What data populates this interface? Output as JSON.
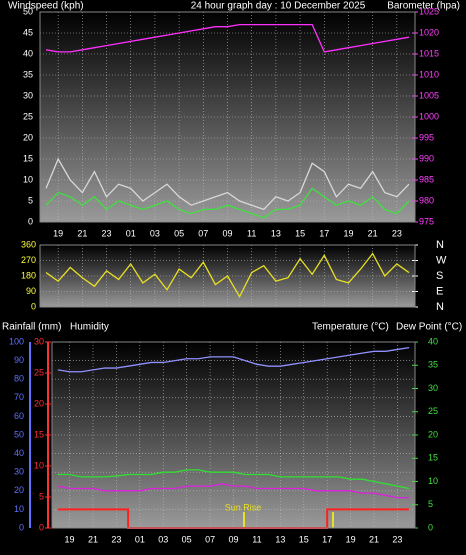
{
  "chart_data": [
    {
      "type": "line",
      "title": "24 hour graph day : 10 December 2025",
      "ylabel": "Windspeed (kph)",
      "y2label": "Barometer (hpa)",
      "categories": [
        null,
        "19",
        null,
        "21",
        null,
        "23",
        null,
        "01",
        null,
        "03",
        null,
        "05",
        null,
        "07",
        null,
        "09",
        null,
        "11",
        null,
        "13",
        null,
        "15",
        null,
        "17",
        null,
        "19",
        null,
        "21",
        null,
        "23",
        null
      ],
      "ylim": [
        0,
        50
      ],
      "yticks": [
        0,
        5,
        10,
        15,
        20,
        25,
        30,
        35,
        40,
        45,
        50
      ],
      "ytick_color": "#ffffff",
      "y2lim": [
        975,
        1025
      ],
      "y2ticks": [
        975,
        980,
        985,
        990,
        995,
        1000,
        1005,
        1010,
        1015,
        1020,
        1025
      ],
      "y2tick_color": "#ff40ff",
      "grid": true,
      "series": [
        {
          "color": "#d8d8d8",
          "values": [
            8,
            15,
            10,
            7,
            12,
            6,
            9,
            8,
            5,
            7,
            9,
            6,
            4,
            5,
            6,
            7,
            5,
            4,
            3,
            6,
            5,
            7,
            14,
            12,
            6,
            9,
            8,
            12,
            7,
            6,
            9
          ]
        },
        {
          "color": "#40e040",
          "values": [
            4,
            7,
            6,
            4,
            6,
            3,
            5,
            4,
            3,
            4,
            5,
            3,
            2,
            3,
            3,
            4,
            3,
            2,
            1,
            3,
            3,
            4,
            8,
            6,
            4,
            5,
            4,
            6,
            3,
            2,
            5
          ]
        },
        {
          "color": "#ff30ff",
          "axis": "y2",
          "values": [
            1016,
            1015.5,
            1015.5,
            1016,
            1016.5,
            1017,
            1017.5,
            1018,
            1018.5,
            1019,
            1019.5,
            1020,
            1020.5,
            1021,
            1021.5,
            1021.5,
            1022,
            1022,
            1022,
            1022,
            1022,
            1022,
            1022,
            1015.5,
            1016,
            1016.5,
            1017,
            1017.5,
            1018,
            1018.5,
            1019
          ]
        }
      ]
    },
    {
      "type": "line",
      "ylim": [
        0,
        360
      ],
      "yticks": [
        0,
        90,
        180,
        270,
        360
      ],
      "ytick_color": "#ffff40",
      "y2lim": [
        0,
        360
      ],
      "y2ticks": [
        {
          "value": 0,
          "label": "N"
        },
        {
          "value": 90,
          "label": "E"
        },
        {
          "value": 180,
          "label": "S"
        },
        {
          "value": 270,
          "label": "W"
        },
        {
          "value": 360,
          "label": "N"
        }
      ],
      "y2tick_color": "#ffffff",
      "grid": true,
      "series": [
        {
          "color": "#e8e020",
          "values": [
            200,
            150,
            230,
            170,
            120,
            210,
            160,
            250,
            140,
            190,
            100,
            220,
            170,
            260,
            130,
            180,
            60,
            200,
            240,
            150,
            170,
            280,
            190,
            300,
            160,
            140,
            220,
            310,
            180,
            250,
            200
          ]
        }
      ]
    },
    {
      "type": "line",
      "categories": [
        null,
        "19",
        null,
        "21",
        null,
        "23",
        null,
        "01",
        null,
        "03",
        null,
        "05",
        null,
        "07",
        null,
        "09",
        null,
        "11",
        null,
        "13",
        null,
        "15",
        null,
        "17",
        null,
        "19",
        null,
        "21",
        null,
        "23",
        null
      ],
      "ylim": [
        0,
        100
      ],
      "yticks": [
        0,
        10,
        20,
        30,
        40,
        50,
        60,
        70,
        80,
        90,
        100
      ],
      "ytick_color": "#6070ff",
      "y2lim": [
        0,
        30
      ],
      "y2ticks": [
        0,
        5,
        10,
        15,
        20,
        25,
        30
      ],
      "y2tick_color": "#ff3030",
      "y3lim": [
        0,
        40
      ],
      "y3ticks": [
        0,
        5,
        10,
        15,
        20,
        25,
        30,
        35,
        40
      ],
      "y3tick_color": "#40e040",
      "grid": true,
      "annotation": "Sun Rise",
      "series": [
        {
          "name": "Rainfall (mm)",
          "color": "#ff2020",
          "axis": "y2",
          "step": true,
          "values": [
            3,
            3,
            3,
            3,
            3,
            3,
            0,
            0,
            0,
            0,
            0,
            0,
            0,
            0,
            0,
            0,
            0,
            0,
            0,
            0,
            0,
            0,
            0,
            3,
            3,
            3,
            3,
            3,
            3,
            3,
            3
          ]
        },
        {
          "name": "Humidity",
          "color": "#9090ff",
          "values": [
            85,
            84,
            84,
            85,
            86,
            86,
            87,
            88,
            89,
            89,
            90,
            91,
            91,
            92,
            92,
            92,
            90,
            88,
            87,
            87,
            88,
            89,
            90,
            91,
            92,
            93,
            94,
            95,
            95,
            96,
            97
          ]
        },
        {
          "name": "Temperature (°C)",
          "color": "#30e030",
          "axis": "y3",
          "values": [
            11.5,
            11.5,
            11,
            11,
            11,
            11.2,
            11.5,
            11.5,
            11.5,
            12,
            12,
            12.5,
            12.5,
            12,
            12,
            12,
            11.5,
            11.5,
            11.5,
            11,
            11,
            11,
            11,
            11,
            11,
            10.5,
            10.5,
            10,
            9.5,
            9,
            8.5
          ]
        },
        {
          "name": "Dew Point (°C)",
          "color": "#e020e0",
          "axis": "y3",
          "values": [
            9,
            8.5,
            8.5,
            8.5,
            8,
            8,
            8,
            8,
            8.5,
            8.5,
            8.5,
            9,
            9,
            9,
            9.5,
            9,
            9,
            8.5,
            8.5,
            8.5,
            8.5,
            8.5,
            8,
            8,
            8,
            8,
            7.5,
            7.5,
            7,
            6.5,
            6.5
          ]
        }
      ]
    }
  ]
}
